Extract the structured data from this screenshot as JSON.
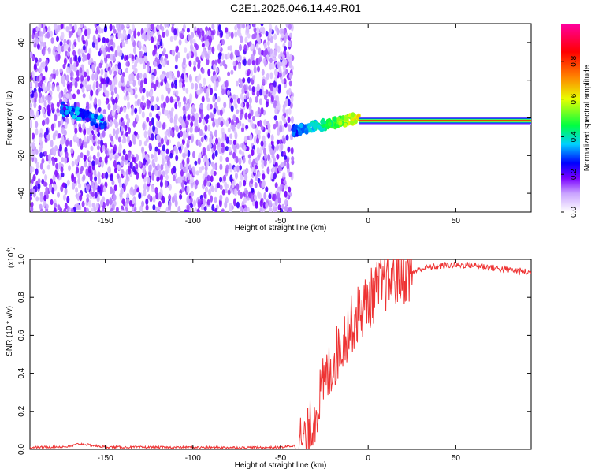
{
  "title": "C2E1.2025.046.14.49.R01",
  "chart_data": [
    {
      "type": "heatmap",
      "xlabel": "Height of straight line (km)",
      "ylabel": "Frequency (Hz)",
      "xlim": [
        -193,
        93
      ],
      "ylim": [
        -50,
        50
      ],
      "xticks": [
        -150,
        -100,
        -50,
        0,
        50
      ],
      "yticks": [
        -40,
        -20,
        0,
        20,
        40
      ],
      "colorbar": {
        "label": "Normalized spectral amplitude",
        "range": [
          0,
          1
        ],
        "ticks": [
          "0.0",
          "0.2",
          "0.4",
          "0.6",
          "0.8"
        ],
        "colors": [
          "#ffffff",
          "#c9a2ff",
          "#7a00ff",
          "#0000ff",
          "#00d0ff",
          "#00ff40",
          "#e8ff00",
          "#ff8000",
          "#ff0000",
          "#ff00a0"
        ]
      },
      "features": {
        "noise_region_x": [
          -193,
          -43
        ],
        "early_track": {
          "x": [
            -175,
            -150
          ],
          "freq": [
            5,
            -3
          ]
        },
        "trend_track": {
          "x": [
            -43,
            -5
          ],
          "freq": [
            -7,
            0
          ]
        },
        "steady_line": {
          "x": [
            -5,
            93
          ],
          "freq": -1.5
        }
      }
    },
    {
      "type": "line",
      "xlabel": "Height of straight line (km)",
      "ylabel": "SNR (10 * v/v)",
      "y_multiplier": "(x10",
      "y_multiplier_exp": "4",
      "y_multiplier_close": ")",
      "xlim": [
        -193,
        93
      ],
      "ylim": [
        0,
        1.0
      ],
      "xticks": [
        -150,
        -100,
        -50,
        0,
        50
      ],
      "yticks": [
        "0.0",
        "0.2",
        "0.4",
        "0.6",
        "0.8",
        "1.0"
      ],
      "series": [
        {
          "color": "#ee3333",
          "envelope": [
            [
              -193,
              0.01
            ],
            [
              -170,
              0.015
            ],
            [
              -165,
              0.03
            ],
            [
              -150,
              0.012
            ],
            [
              -100,
              0.01
            ],
            [
              -50,
              0.01
            ],
            [
              -42,
              0.02
            ],
            [
              -35,
              0.05
            ],
            [
              -30,
              0.2
            ],
            [
              -25,
              0.35
            ],
            [
              -18,
              0.5
            ],
            [
              -12,
              0.62
            ],
            [
              -5,
              0.72
            ],
            [
              0,
              0.78
            ],
            [
              5,
              0.84
            ],
            [
              10,
              0.88
            ],
            [
              15,
              0.9
            ],
            [
              22,
              0.92
            ],
            [
              30,
              0.95
            ],
            [
              45,
              0.97
            ],
            [
              60,
              0.97
            ],
            [
              75,
              0.95
            ],
            [
              85,
              0.94
            ],
            [
              93,
              0.93
            ]
          ]
        }
      ]
    }
  ]
}
